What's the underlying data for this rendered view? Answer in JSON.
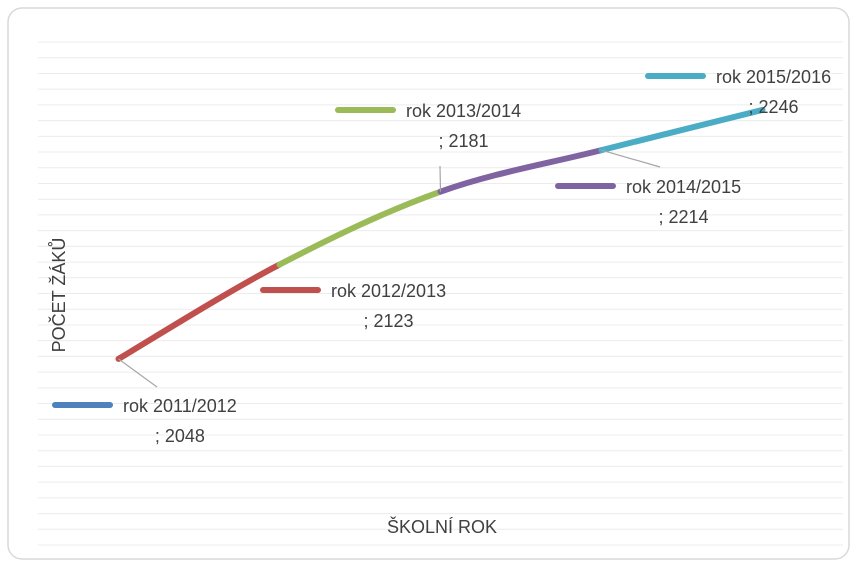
{
  "chart_data": {
    "type": "line",
    "x_label": "ŠKOLNÍ ROK",
    "y_label": "POČET ŽÁKŮ",
    "categories": [
      "rok 2011/2012",
      "rok 2012/2013",
      "rok 2013/2014",
      "rok 2014/2015",
      "rok 2015/2016"
    ],
    "values": [
      2048,
      2123,
      2181,
      2214,
      2246
    ],
    "value_labels": [
      "; 2048",
      "; 2123",
      "; 2181",
      "; 2214",
      "; 2246"
    ],
    "colors": [
      "#4f81bd",
      "#c0504d",
      "#9bbb59",
      "#8064a2",
      "#4bacc6"
    ],
    "ylim": [
      1900,
      2300
    ],
    "yticks": [
      1900,
      1912.5,
      1925,
      1937.5,
      1950,
      1962.5,
      1975,
      1987.5,
      2000,
      2012.5,
      2025,
      2037.5,
      2050,
      2062.5,
      2075,
      2087.5,
      2100,
      2112.5,
      2125,
      2137.5,
      2150,
      2162.5,
      2175,
      2187.5,
      2200,
      2212.5,
      2225,
      2237.5,
      2250,
      2262.5,
      2275,
      2287.5,
      2300
    ],
    "grid": true
  }
}
